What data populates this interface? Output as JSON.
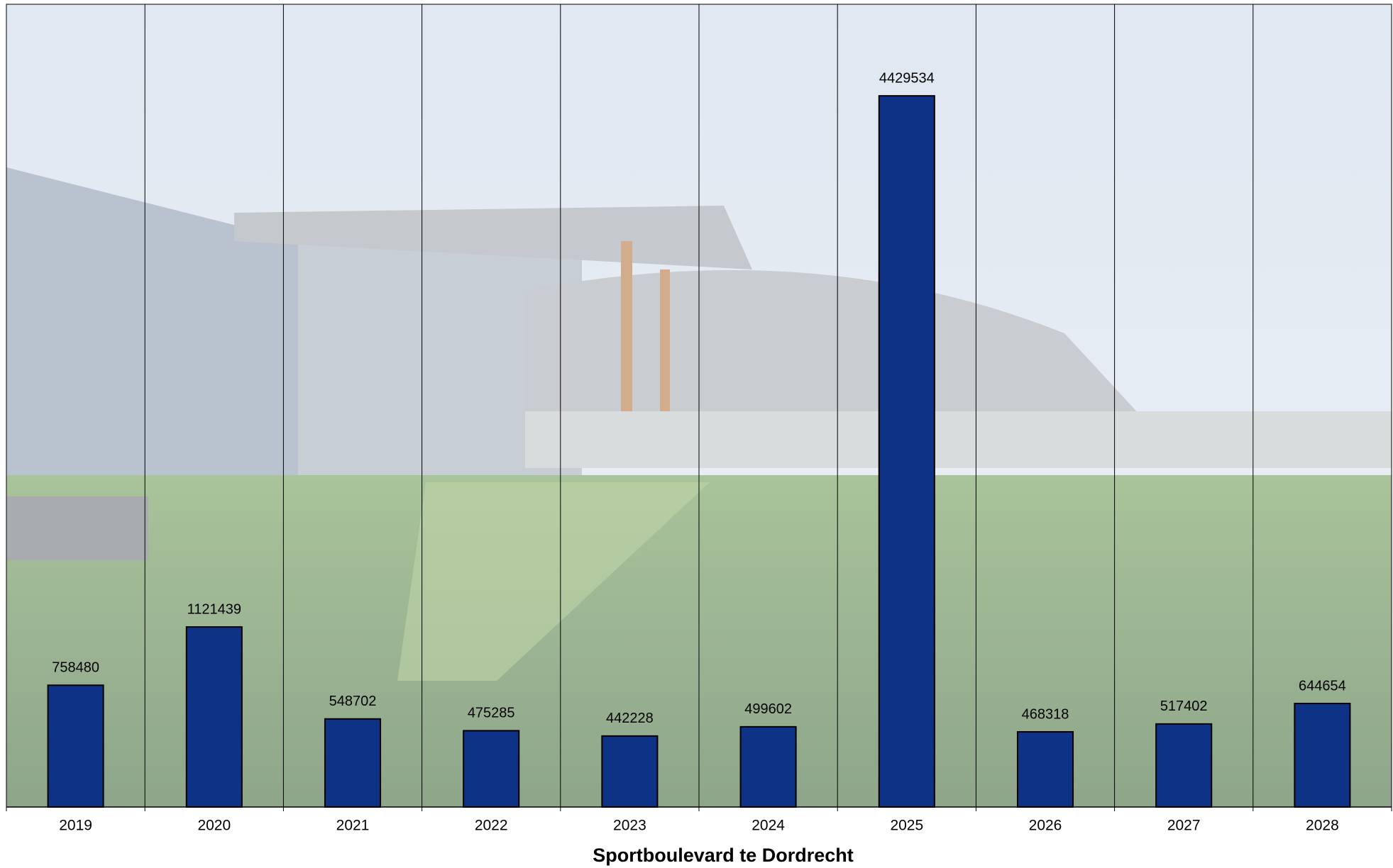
{
  "chart_data": {
    "type": "bar",
    "title": "Sportboulevard te Dordrecht",
    "categories": [
      "2019",
      "2020",
      "2021",
      "2022",
      "2023",
      "2024",
      "2025",
      "2026",
      "2027",
      "2028"
    ],
    "values": [
      758480,
      1121439,
      548702,
      475285,
      442228,
      499602,
      4429534,
      468318,
      517402,
      644654
    ],
    "color": "#0e3386",
    "ylim": [
      0,
      5000000
    ]
  }
}
